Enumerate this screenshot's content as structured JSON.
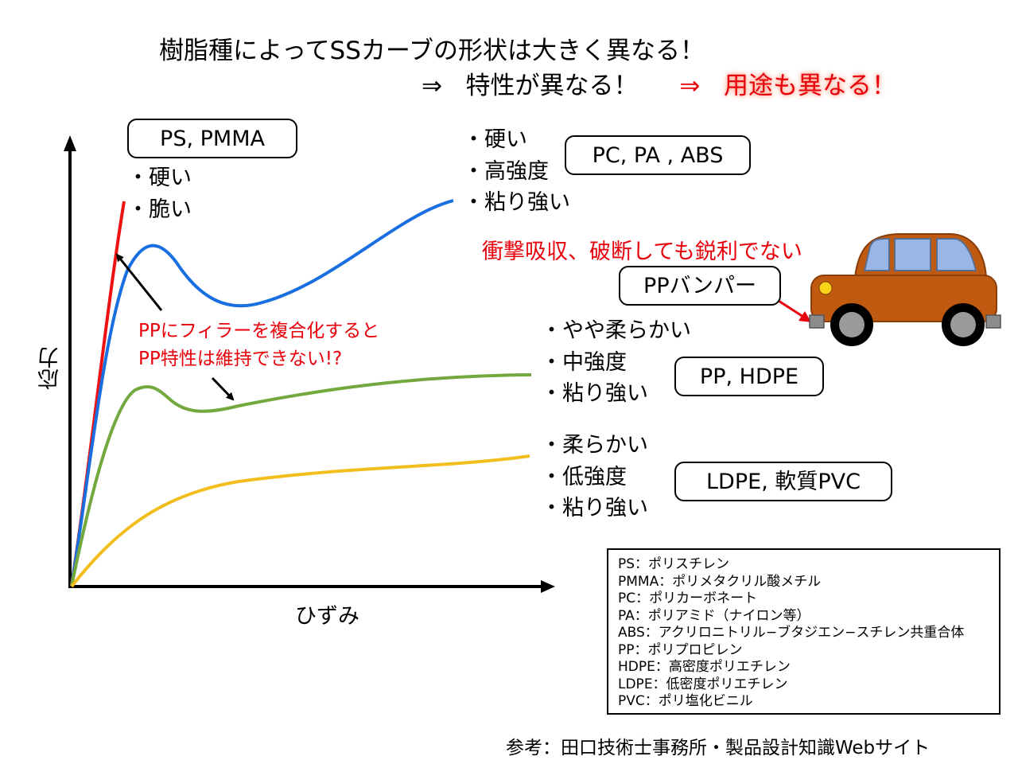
{
  "title": {
    "line1": "樹脂種によってSSカーブの形状は大きく異なる！",
    "line2_arrow": "⇒",
    "line2_text": "特性が異なる！",
    "line2_arrow2": "⇒",
    "line2_uses": "用途も異なる！"
  },
  "axes": {
    "y_label": "応力",
    "x_label": "ひずみ"
  },
  "groups": [
    {
      "label": "PS, PMMA",
      "props": [
        "・硬い",
        "・脆い"
      ]
    },
    {
      "label": "PC, PA , ABS",
      "props": [
        "・硬い",
        "・高強度",
        "・粘り強い"
      ]
    },
    {
      "label": "PP, HDPE",
      "props": [
        "・やや柔らかい",
        "・中強度",
        "・粘り強い"
      ]
    },
    {
      "label": "LDPE, 軟質PVC",
      "props": [
        "・柔らかい",
        "・低強度",
        "・粘り強い"
      ]
    }
  ],
  "curve_colors": {
    "ps_pmma": "#ee1111",
    "pc_pa_abs": "#1a6fe0",
    "pp_hdpe": "#72a83e",
    "ldpe_pvc": "#f2be1e"
  },
  "filler_note": [
    "PPにフィラーを複合化すると",
    "PP特性は維持できない!?"
  ],
  "bumper": {
    "absorb_text": "衝撃吸収、破断しても鋭利でない",
    "label": "PPバンパー"
  },
  "legend": [
    "PS：ポリスチレン",
    "PMMA：ポリメタクリル酸メチル",
    "PC：ポリカーボネート",
    "PA：ポリアミド（ナイロン等）",
    "ABS：アクリロニトリル−ブタジエン−スチレン共重合体",
    "PP：ポリプロピレン",
    "HDPE：高密度ポリエチレン",
    "LDPE：低密度ポリエチレン",
    "PVC：ポリ塩化ビニル"
  ],
  "source": "参考：田口技術士事務所・製品設計知識Webサイト",
  "accent_color": "#e8000b",
  "car_color": "#c05a10"
}
